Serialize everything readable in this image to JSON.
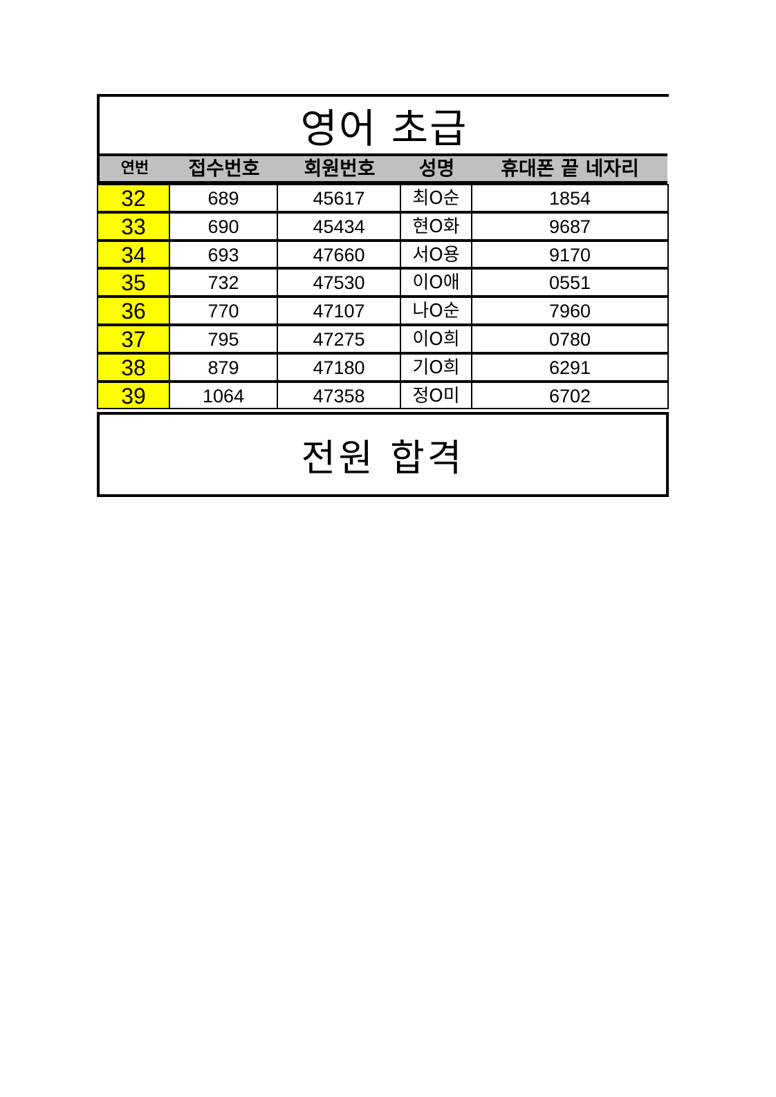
{
  "title": "영어 초급",
  "headers": [
    "연번",
    "접수번호",
    "회원번호",
    "성명",
    "휴대폰 끝 네자리"
  ],
  "rows": [
    {
      "no": "32",
      "receipt": "689",
      "member": "45617",
      "name": "최O순",
      "phone": "1854"
    },
    {
      "no": "33",
      "receipt": "690",
      "member": "45434",
      "name": "현O화",
      "phone": "9687"
    },
    {
      "no": "34",
      "receipt": "693",
      "member": "47660",
      "name": "서O용",
      "phone": "9170"
    },
    {
      "no": "35",
      "receipt": "732",
      "member": "47530",
      "name": "이O애",
      "phone": "0551"
    },
    {
      "no": "36",
      "receipt": "770",
      "member": "47107",
      "name": "나O순",
      "phone": "7960"
    },
    {
      "no": "37",
      "receipt": "795",
      "member": "47275",
      "name": "이O희",
      "phone": "0780"
    },
    {
      "no": "38",
      "receipt": "879",
      "member": "47180",
      "name": "기O희",
      "phone": "6291"
    },
    {
      "no": "39",
      "receipt": "1064",
      "member": "47358",
      "name": "정O미",
      "phone": "6702"
    }
  ],
  "footer": "전원 합격",
  "colors": {
    "number_highlight": "#ffff00",
    "header_bg": "#c0c0c0"
  }
}
